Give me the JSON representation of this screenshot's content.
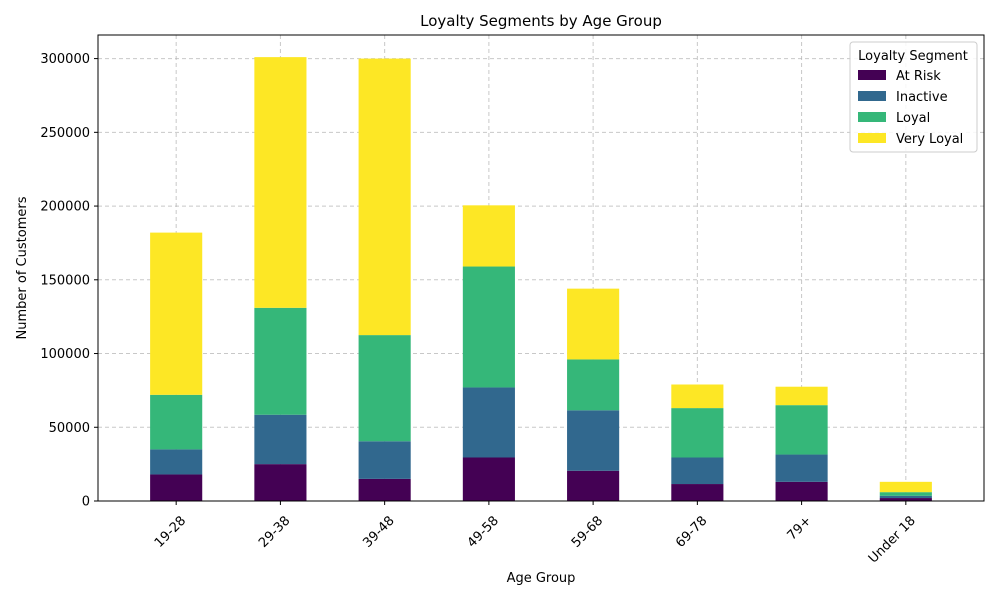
{
  "chart_data": {
    "type": "bar",
    "stacked": true,
    "title": "Loyalty Segments by Age Group",
    "xlabel": "Age Group",
    "ylabel": "Number of Customers",
    "ylim": [
      0,
      316000
    ],
    "yticks": [
      0,
      50000,
      100000,
      150000,
      200000,
      250000,
      300000
    ],
    "grid": true,
    "legend_title": "Loyalty Segment",
    "legend_position": "top-right",
    "categories": [
      "19-28",
      "29-38",
      "39-48",
      "49-58",
      "59-68",
      "69-78",
      "79+",
      "Under 18"
    ],
    "series": [
      {
        "name": "At Risk",
        "color": "#440154",
        "values": [
          18000,
          25000,
          15000,
          29500,
          20500,
          11500,
          13000,
          2000
        ]
      },
      {
        "name": "Inactive",
        "color": "#31688e",
        "values": [
          17000,
          33500,
          25500,
          47500,
          41000,
          18000,
          18500,
          1500
        ]
      },
      {
        "name": "Loyal",
        "color": "#35b779",
        "values": [
          37000,
          72500,
          72000,
          82000,
          34500,
          33500,
          33500,
          2500
        ]
      },
      {
        "name": "Very Loyal",
        "color": "#fde725",
        "values": [
          110000,
          170000,
          187500,
          41500,
          48000,
          16000,
          12500,
          7000
        ]
      }
    ]
  }
}
